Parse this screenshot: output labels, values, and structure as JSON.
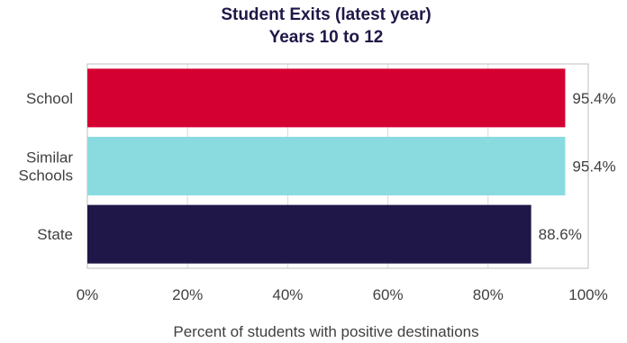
{
  "chart_data": {
    "type": "bar",
    "orientation": "horizontal",
    "title_lines": [
      "Student Exits (latest year)",
      "Years 10 to 12"
    ],
    "categories": [
      [
        "School"
      ],
      [
        "Similar",
        "Schools"
      ],
      [
        "State"
      ]
    ],
    "values": [
      95.4,
      95.4,
      88.6
    ],
    "value_labels": [
      "95.4%",
      "95.4%",
      "88.6%"
    ],
    "colors": [
      "#d50032",
      "#8adbe0",
      "#1f1747"
    ],
    "xlabel": "Percent of students with positive destinations",
    "xlim": [
      0,
      100
    ],
    "x_ticks": [
      0,
      20,
      40,
      60,
      80,
      100
    ],
    "x_tick_labels": [
      "0%",
      "20%",
      "40%",
      "60%",
      "80%",
      "100%"
    ],
    "grid": true
  }
}
